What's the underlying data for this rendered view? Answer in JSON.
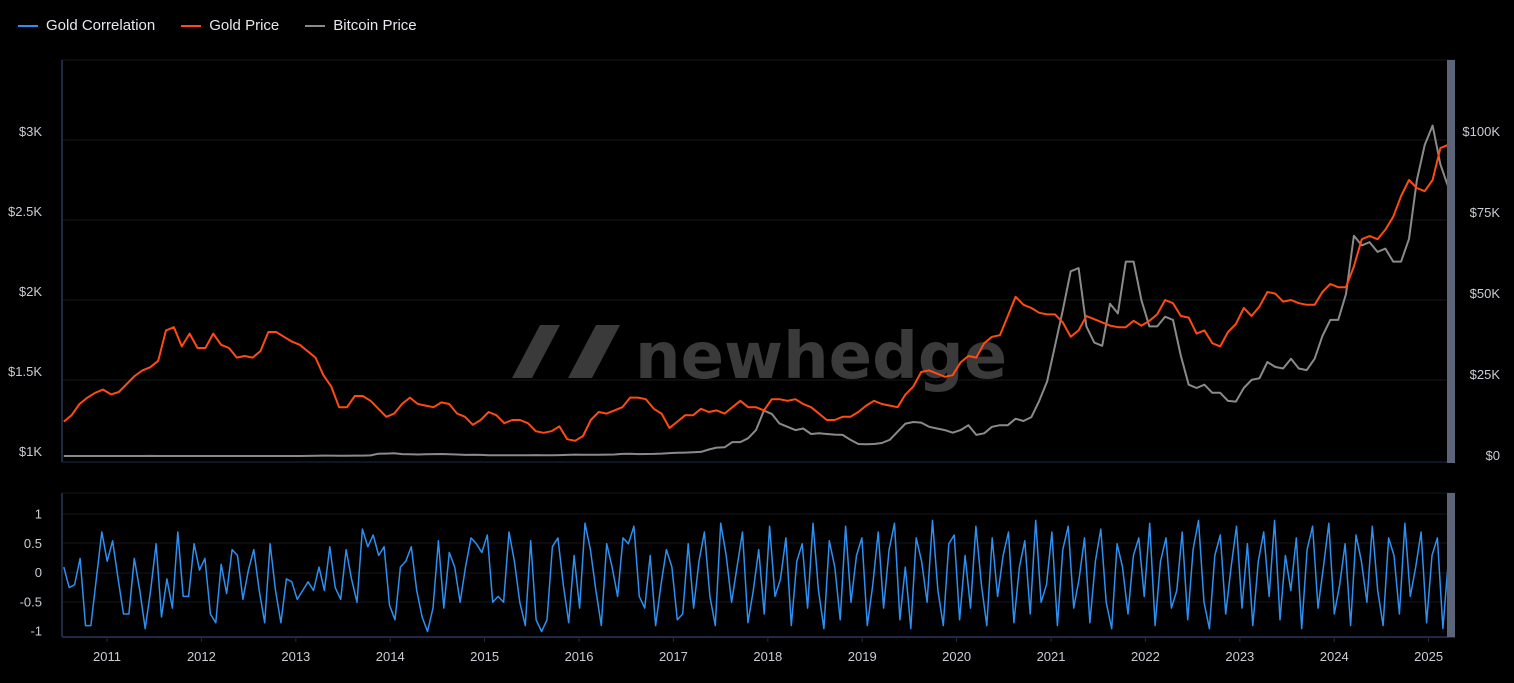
{
  "legend": [
    {
      "label": "Gold Correlation",
      "color": "#2d8ff0"
    },
    {
      "label": "Gold Price",
      "color": "#ff4a12"
    },
    {
      "label": "Bitcoin Price",
      "color": "#8a8a8a"
    }
  ],
  "watermark": "newhedge",
  "chart_data": [
    {
      "type": "line",
      "x_ticks": [
        "2011",
        "2012",
        "2013",
        "2014",
        "2015",
        "2016",
        "2017",
        "2018",
        "2019",
        "2020",
        "2021",
        "2022",
        "2023",
        "2024",
        "2025"
      ],
      "xlim": [
        "2010-07",
        "2025-03"
      ],
      "left_axis": {
        "ticks": [
          "$1K",
          "$1.5K",
          "$2K",
          "$2.5K",
          "$3K"
        ],
        "tick_values": [
          1000,
          1500,
          2000,
          2500,
          3000
        ],
        "ylim": [
          1000,
          3000
        ]
      },
      "right_axis": {
        "ticks": [
          "$0",
          "$25K",
          "$50K",
          "$75K",
          "$100K"
        ],
        "tick_values": [
          0,
          25000,
          50000,
          75000,
          100000
        ],
        "ylim": [
          0,
          100000
        ]
      },
      "start_month": "2010-07",
      "series": [
        {
          "name": "Gold Price",
          "axis": "left",
          "color": "#ff4a12",
          "values": [
            1190,
            1230,
            1300,
            1340,
            1370,
            1390,
            1360,
            1375,
            1425,
            1475,
            1510,
            1530,
            1570,
            1760,
            1780,
            1660,
            1740,
            1650,
            1650,
            1740,
            1670,
            1650,
            1590,
            1600,
            1590,
            1630,
            1750,
            1750,
            1720,
            1690,
            1670,
            1630,
            1590,
            1480,
            1410,
            1280,
            1280,
            1350,
            1350,
            1320,
            1270,
            1220,
            1240,
            1300,
            1340,
            1300,
            1290,
            1280,
            1310,
            1300,
            1240,
            1220,
            1170,
            1200,
            1250,
            1230,
            1180,
            1200,
            1200,
            1180,
            1130,
            1120,
            1130,
            1160,
            1080,
            1070,
            1100,
            1200,
            1250,
            1240,
            1260,
            1280,
            1340,
            1340,
            1330,
            1270,
            1240,
            1150,
            1190,
            1230,
            1230,
            1270,
            1250,
            1260,
            1240,
            1280,
            1320,
            1280,
            1280,
            1260,
            1330,
            1330,
            1320,
            1330,
            1300,
            1280,
            1240,
            1200,
            1200,
            1220,
            1220,
            1250,
            1290,
            1320,
            1300,
            1290,
            1280,
            1360,
            1410,
            1500,
            1510,
            1490,
            1470,
            1480,
            1560,
            1600,
            1590,
            1680,
            1720,
            1730,
            1850,
            1970,
            1920,
            1900,
            1870,
            1860,
            1860,
            1810,
            1720,
            1760,
            1850,
            1830,
            1810,
            1790,
            1780,
            1780,
            1820,
            1790,
            1820,
            1860,
            1950,
            1930,
            1850,
            1840,
            1740,
            1760,
            1680,
            1660,
            1750,
            1800,
            1900,
            1850,
            1910,
            2000,
            1990,
            1940,
            1950,
            1930,
            1920,
            1920,
            2000,
            2050,
            2030,
            2030,
            2160,
            2330,
            2350,
            2330,
            2390,
            2470,
            2600,
            2700,
            2650,
            2630,
            2700,
            2900,
            2920
          ]
        },
        {
          "name": "Bitcoin Price",
          "axis": "right",
          "color": "#8a8a8a",
          "values": [
            0.06,
            0.07,
            0.06,
            0.2,
            0.25,
            0.3,
            0.5,
            1,
            0.9,
            1.5,
            8,
            17,
            14,
            9,
            5,
            3,
            3,
            4,
            6,
            5,
            5,
            5,
            5,
            6,
            8,
            11,
            12,
            11,
            11,
            13,
            15,
            25,
            60,
            130,
            120,
            100,
            90,
            110,
            130,
            170,
            700,
            750,
            850,
            600,
            550,
            450,
            550,
            600,
            620,
            550,
            450,
            350,
            370,
            330,
            250,
            240,
            260,
            230,
            240,
            240,
            280,
            250,
            235,
            270,
            350,
            430,
            400,
            380,
            415,
            430,
            470,
            650,
            680,
            575,
            605,
            640,
            730,
            900,
            1000,
            1050,
            1150,
            1250,
            2000,
            2600,
            2700,
            4300,
            4300,
            5500,
            8000,
            14000,
            13000,
            10000,
            9000,
            8000,
            8500,
            6800,
            7000,
            6800,
            6600,
            6500,
            5000,
            3700,
            3600,
            3700,
            4000,
            5000,
            7500,
            10000,
            10500,
            10300,
            9000,
            8500,
            8000,
            7200,
            8000,
            9500,
            6500,
            7000,
            9000,
            9500,
            9500,
            11500,
            10800,
            12000,
            17000,
            23000,
            34000,
            45000,
            57000,
            58000,
            40000,
            35000,
            34000,
            47000,
            44000,
            60000,
            60000,
            48000,
            40000,
            40000,
            43000,
            42000,
            31000,
            22000,
            21000,
            22000,
            19500,
            19500,
            17000,
            16800,
            21000,
            23500,
            24000,
            29000,
            27500,
            27000,
            30000,
            27000,
            26500,
            30000,
            37000,
            42000,
            42000,
            50000,
            68000,
            65000,
            66000,
            63000,
            64000,
            60000,
            60000,
            67000,
            85000,
            96000,
            102000,
            90000,
            83000
          ]
        }
      ]
    },
    {
      "type": "line",
      "xlim": [
        "2010-07",
        "2025-03"
      ],
      "y_ticks": [
        "1",
        "0.5",
        "0",
        "-0.5",
        "-1"
      ],
      "tick_values": [
        1,
        0.5,
        0,
        -0.5,
        -1
      ],
      "ylim": [
        -1.1,
        1.3
      ],
      "series": [
        {
          "name": "Gold Correlation",
          "color": "#2d8ff0",
          "values": [
            0.1,
            -0.25,
            -0.2,
            0.25,
            -0.9,
            -0.9,
            -0.1,
            0.7,
            0.2,
            0.55,
            -0.1,
            -0.7,
            -0.7,
            0.25,
            -0.3,
            -0.95,
            -0.3,
            0.5,
            -0.75,
            -0.1,
            -0.6,
            0.7,
            -0.4,
            -0.4,
            0.5,
            0.05,
            0.25,
            -0.7,
            -0.85,
            0.15,
            -0.35,
            0.4,
            0.3,
            -0.45,
            0.05,
            0.4,
            -0.3,
            -0.85,
            0.5,
            -0.3,
            -0.85,
            -0.1,
            -0.15,
            -0.45,
            -0.3,
            -0.15,
            -0.3,
            0.1,
            -0.3,
            0.45,
            -0.25,
            -0.45,
            0.4,
            -0.1,
            -0.5,
            0.75,
            0.45,
            0.65,
            0.3,
            0.45,
            -0.55,
            -0.8,
            0.1,
            0.2,
            0.45,
            -0.3,
            -0.75,
            -1.0,
            -0.6,
            0.55,
            -0.6,
            0.35,
            0.1,
            -0.5,
            0.1,
            0.6,
            0.5,
            0.35,
            0.65,
            -0.5,
            -0.4,
            -0.5,
            0.7,
            0.2,
            -0.5,
            -0.9,
            0.55,
            -0.8,
            -1.0,
            -0.8,
            0.45,
            0.6,
            -0.2,
            -0.85,
            0.3,
            -0.6,
            0.85,
            0.4,
            -0.3,
            -0.9,
            0.5,
            0.1,
            -0.4,
            0.6,
            0.5,
            0.8,
            -0.4,
            -0.6,
            0.3,
            -0.9,
            -0.2,
            0.4,
            0.1,
            -0.8,
            -0.7,
            0.5,
            -0.6,
            0.2,
            0.7,
            -0.4,
            -0.9,
            0.85,
            0.3,
            -0.5,
            0.1,
            0.7,
            -0.85,
            -0.3,
            0.4,
            -0.7,
            0.8,
            -0.4,
            -0.1,
            0.6,
            -0.9,
            0.2,
            0.5,
            -0.6,
            0.85,
            -0.3,
            -0.95,
            0.55,
            0.1,
            -0.8,
            0.8,
            -0.5,
            0.3,
            0.6,
            -0.9,
            -0.2,
            0.7,
            -0.6,
            0.4,
            0.85,
            -0.8,
            0.1,
            -0.95,
            0.6,
            0.2,
            -0.5,
            0.9,
            -0.3,
            -0.9,
            0.5,
            0.65,
            -0.8,
            0.3,
            -0.6,
            0.8,
            -0.2,
            -0.9,
            0.6,
            -0.4,
            0.3,
            0.7,
            -0.85,
            0.1,
            0.55,
            -0.7,
            0.9,
            -0.5,
            -0.2,
            0.7,
            -0.9,
            0.4,
            0.8,
            -0.6,
            -0.1,
            0.6,
            -0.85,
            0.2,
            0.75,
            -0.5,
            -0.95,
            0.5,
            0.1,
            -0.7,
            0.3,
            0.6,
            -0.4,
            0.85,
            -0.9,
            0.2,
            0.6,
            -0.6,
            -0.3,
            0.7,
            -0.8,
            0.4,
            0.9,
            -0.5,
            -0.95,
            0.3,
            0.65,
            -0.7,
            0.1,
            0.8,
            -0.6,
            0.5,
            -0.9,
            0.2,
            0.7,
            -0.4,
            0.9,
            -0.8,
            0.3,
            -0.3,
            0.6,
            -0.95,
            0.4,
            0.8,
            -0.6,
            0.1,
            0.85,
            -0.7,
            -0.2,
            0.5,
            -0.9,
            0.65,
            0.2,
            -0.5,
            0.8,
            -0.3,
            -0.9,
            0.6,
            0.3,
            -0.7,
            0.85,
            -0.4,
            0.1,
            0.7,
            -0.85,
            0.3,
            0.6,
            -0.95,
            0.2
          ]
        }
      ]
    }
  ]
}
